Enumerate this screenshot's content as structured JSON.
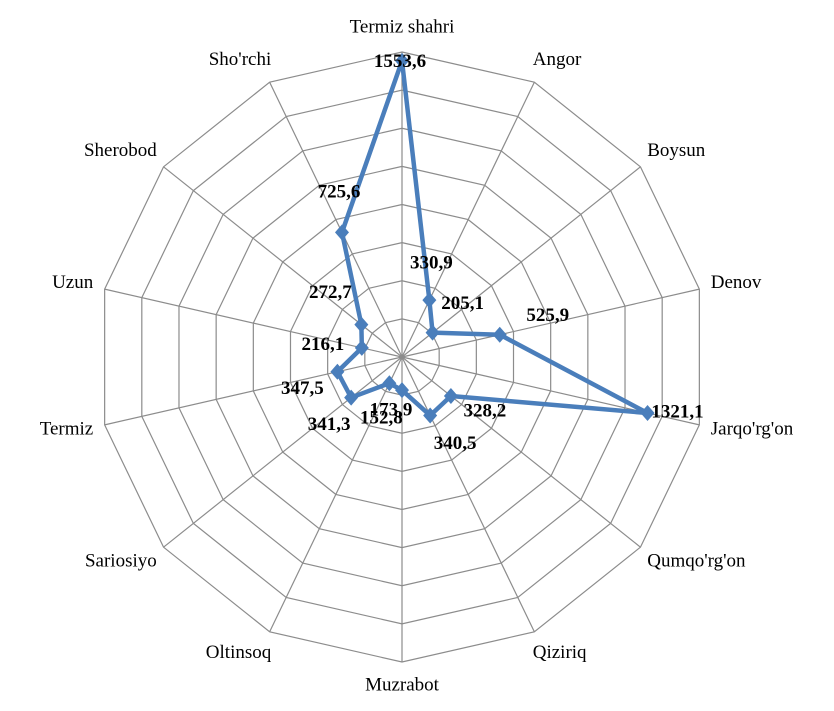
{
  "chart_data": {
    "type": "radar",
    "categories": [
      "Termiz shahri",
      "Angor",
      "Boysun",
      "Denov",
      "Jarqo'rg'on",
      "Qumqo'rg'on",
      "Qiziriq",
      "Muzrabot",
      "Oltinsoq",
      "Sariosiyo",
      "Termiz",
      "Uzun",
      "Sherobod",
      "Sho'rchi"
    ],
    "values": [
      1553.6,
      330.9,
      205.1,
      525.9,
      1321.1,
      328.2,
      340.5,
      173.9,
      152.8,
      341.3,
      347.5,
      216.1,
      272.7,
      725.6
    ],
    "value_labels": [
      "1553,6",
      "330,9",
      "205,1",
      "525,9",
      "1321,1",
      "328,2",
      "340,5",
      "173,9",
      "152,8",
      "341,3",
      "347,5",
      "216,1",
      "272,7",
      "725,6"
    ],
    "color": "#4a7ebb",
    "ylim": [
      0,
      1600
    ],
    "yticks": [
      0,
      200,
      400,
      600,
      800,
      1000,
      1200,
      1400,
      1600
    ],
    "grid": true
  }
}
